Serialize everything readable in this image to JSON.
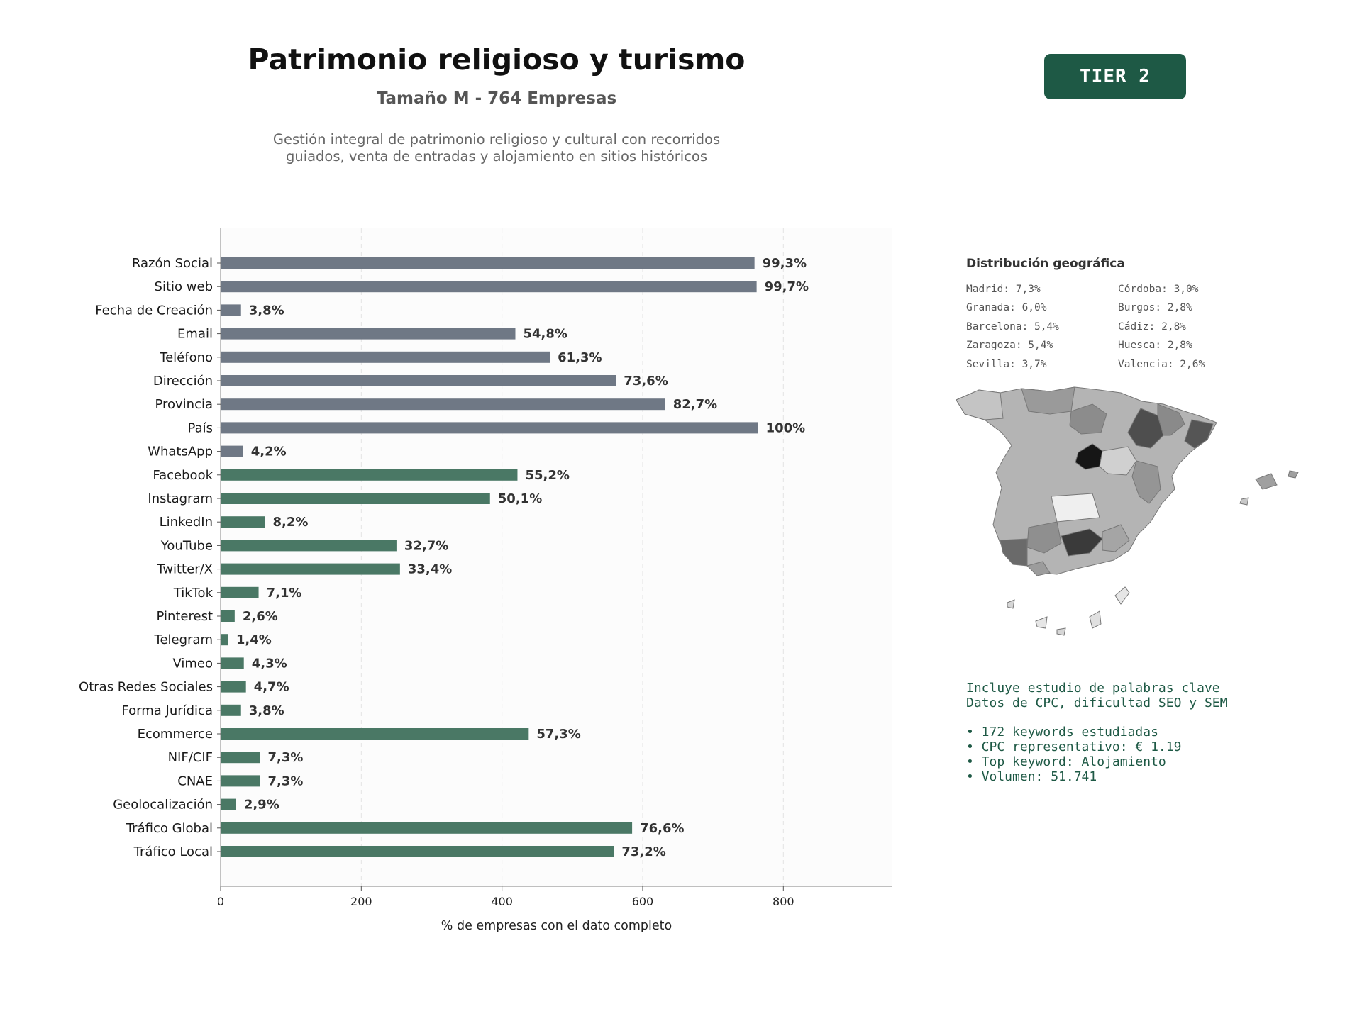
{
  "header": {
    "title": "Patrimonio religioso y turismo",
    "subtitle": "Tamaño M - 764 Empresas",
    "description_lines": [
      "Gestión integral de patrimonio religioso y cultural con recorridos",
      "guiados, venta de entradas y alojamiento en sitios históricos"
    ],
    "tier_badge": "TIER 2"
  },
  "colors": {
    "grey_bar": "#6f7885",
    "green_bar": "#4a7865",
    "badge": "#1e5945",
    "keyword_text": "#1e5945"
  },
  "chart_data": {
    "type": "bar",
    "orientation": "horizontal",
    "xlabel": "% de empresas con el dato completo",
    "xlim": [
      0,
      955
    ],
    "xticks": [
      0,
      200,
      400,
      600,
      800
    ],
    "grid": "vertical dashed",
    "categories": [
      "Razón Social",
      "Sitio web",
      "Fecha de Creación",
      "Email",
      "Teléfono",
      "Dirección",
      "Provincia",
      "País",
      "WhatsApp",
      "Facebook",
      "Instagram",
      "LinkedIn",
      "YouTube",
      "Twitter/X",
      "TikTok",
      "Pinterest",
      "Telegram",
      "Vimeo",
      "Otras Redes Sociales",
      "Forma Jurídica",
      "Ecommerce",
      "NIF/CIF",
      "CNAE",
      "Geolocalización",
      "Tráfico Global",
      "Tráfico Local"
    ],
    "values": [
      759,
      762,
      29,
      419,
      468,
      562,
      632,
      764,
      32,
      422,
      383,
      63,
      250,
      255,
      54,
      20,
      11,
      33,
      36,
      29,
      438,
      56,
      56,
      22,
      585,
      559
    ],
    "data_labels": [
      "99,3%",
      "99,7%",
      "3,8%",
      "54,8%",
      "61,3%",
      "73,6%",
      "82,7%",
      "100%",
      "4,2%",
      "55,2%",
      "50,1%",
      "8,2%",
      "32,7%",
      "33,4%",
      "7,1%",
      "2,6%",
      "1,4%",
      "4,3%",
      "4,7%",
      "3,8%",
      "57,3%",
      "7,3%",
      "7,3%",
      "2,9%",
      "76,6%",
      "73,2%"
    ],
    "bar_group": [
      "grey",
      "grey",
      "grey",
      "grey",
      "grey",
      "grey",
      "grey",
      "grey",
      "grey",
      "green",
      "green",
      "green",
      "green",
      "green",
      "green",
      "green",
      "green",
      "green",
      "green",
      "green",
      "green",
      "green",
      "green",
      "green",
      "green",
      "green"
    ]
  },
  "geo": {
    "title": "Distribución geográfica",
    "items": [
      "Madrid: 7,3%",
      "Córdoba: 3,0%",
      "Granada: 6,0%",
      "Burgos: 2,8%",
      "Barcelona: 5,4%",
      "Cádiz: 2,8%",
      "Zaragoza: 5,4%",
      "Huesca: 2,8%",
      "Sevilla: 3,7%",
      "Valencia: 2,6%"
    ]
  },
  "keywords": {
    "intro": [
      "Incluye estudio de palabras clave",
      "Datos de CPC, dificultad SEO y SEM"
    ],
    "bullets": [
      "• 172 keywords estudiadas",
      "• CPC representativo: € 1.19",
      "• Top keyword: Alojamiento",
      "• Volumen: 51.741"
    ]
  }
}
